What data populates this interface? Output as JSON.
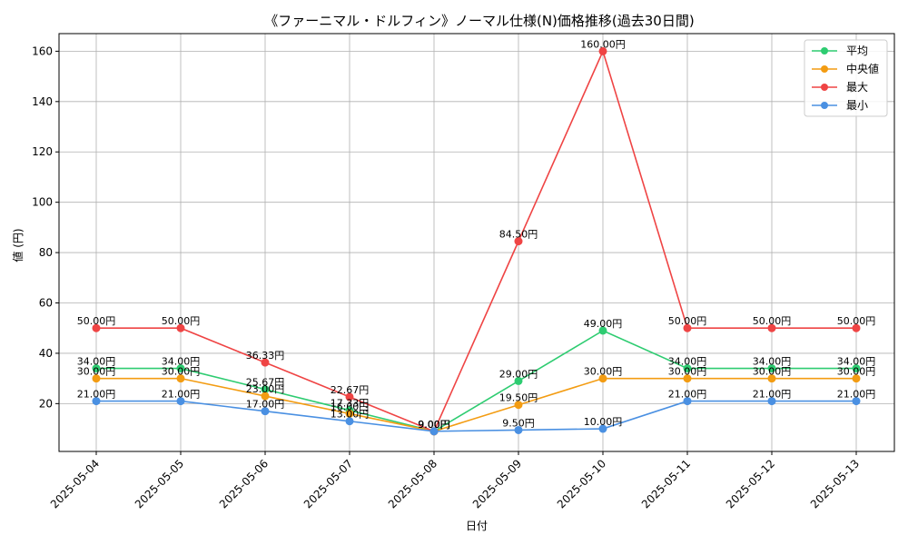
{
  "chart_data": {
    "type": "line",
    "title": "《ファーニマル・ドルフィン》ノーマル仕様(N)価格推移(過去30日間)",
    "xlabel": "日付",
    "ylabel": "値 (円)",
    "categories": [
      "2025-05-04",
      "2025-05-05",
      "2025-05-06",
      "2025-05-07",
      "2025-05-08",
      "2025-05-09",
      "2025-05-10",
      "2025-05-11",
      "2025-05-12",
      "2025-05-13"
    ],
    "y_ticks": [
      20,
      40,
      60,
      80,
      100,
      120,
      140,
      160
    ],
    "ylim": [
      1,
      167
    ],
    "grid": true,
    "legend_position": "top-right",
    "value_suffix": "円",
    "series": [
      {
        "name": "平均",
        "color": "#2ecc71",
        "values": [
          34.0,
          34.0,
          25.67,
          17.33,
          9.0,
          29.0,
          49.0,
          34.0,
          34.0,
          34.0
        ],
        "labels": [
          "34.00円",
          "34.00円",
          "25.67円",
          "17.33円",
          "9.00円",
          "29.00円",
          "49.00円",
          "34.00円",
          "34.00円",
          "34.00円"
        ]
      },
      {
        "name": "中央値",
        "color": "#f39c12",
        "values": [
          30.0,
          30.0,
          23.0,
          16.0,
          9.0,
          19.5,
          30.0,
          30.0,
          30.0,
          30.0
        ],
        "labels": [
          "30.00円",
          "30.00円",
          "23.00円",
          "16.00円",
          "9.00円",
          "19.50円",
          "30.00円",
          "30.00円",
          "30.00円",
          "30.00円"
        ]
      },
      {
        "name": "最大",
        "color": "#ef4444",
        "values": [
          50.0,
          50.0,
          36.33,
          22.67,
          9.0,
          84.5,
          160.0,
          50.0,
          50.0,
          50.0
        ],
        "labels": [
          "50.00円",
          "50.00円",
          "36.33円",
          "22.67円",
          "9.00円",
          "84.50円",
          "160.00円",
          "50.00円",
          "50.00円",
          "50.00円"
        ]
      },
      {
        "name": "最小",
        "color": "#4a90e2",
        "values": [
          21.0,
          21.0,
          17.0,
          13.0,
          9.0,
          9.5,
          10.0,
          21.0,
          21.0,
          21.0
        ],
        "labels": [
          "21.00円",
          "21.00円",
          "17.00円",
          "13.00円",
          "9.00円",
          "9.50円",
          "10.00円",
          "21.00円",
          "21.00円",
          "21.00円"
        ]
      }
    ]
  }
}
